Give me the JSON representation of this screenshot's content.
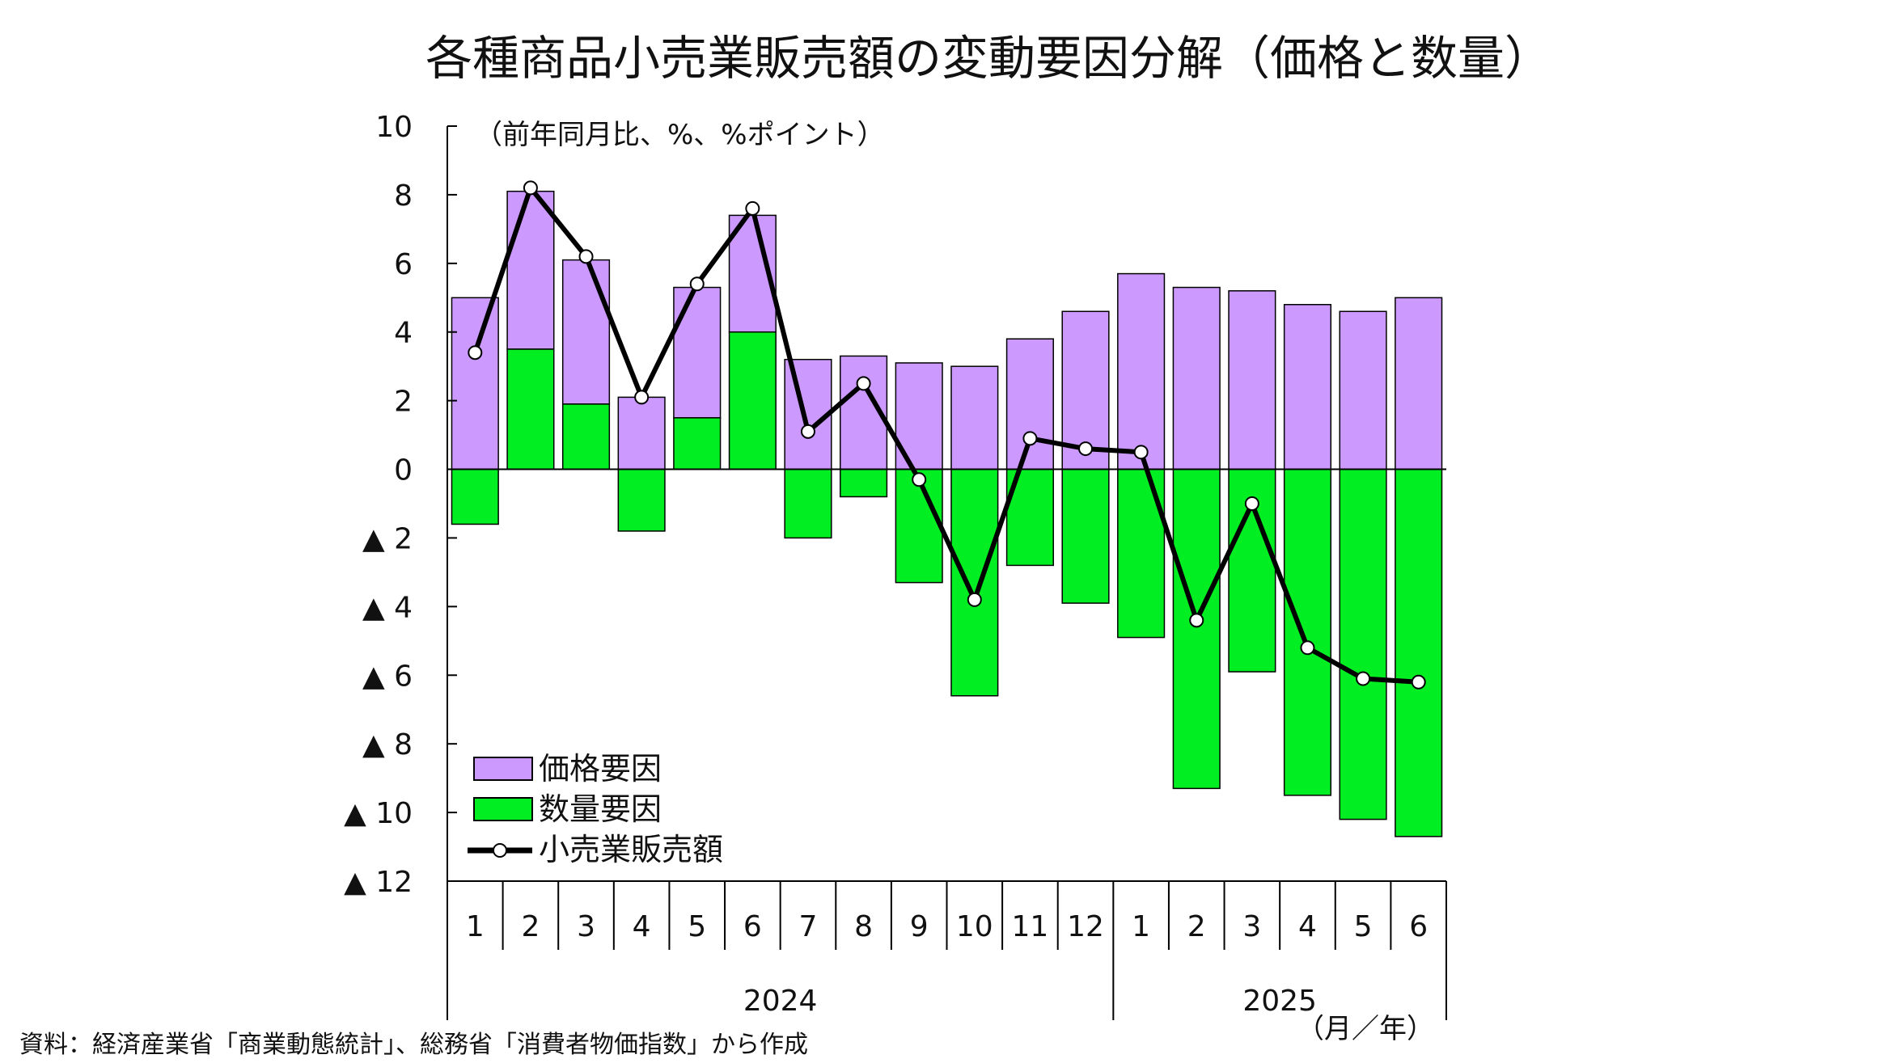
{
  "chart_data": {
    "type": "bar",
    "title": "各種商品小売業販売額の変動要因分解（価格と数量）",
    "unit_label": "（前年同月比、%、%ポイント）",
    "x_unit_label": "（月／年）",
    "source": "資料：経済産業省「商業動態統計」、総務省「消費者物価指数」から作成",
    "categories": [
      "1",
      "2",
      "3",
      "4",
      "5",
      "6",
      "7",
      "8",
      "9",
      "10",
      "11",
      "12",
      "1",
      "2",
      "3",
      "4",
      "5",
      "6"
    ],
    "year_groups": [
      {
        "label": "2024",
        "start": 0,
        "count": 12
      },
      {
        "label": "2025",
        "start": 12,
        "count": 6
      }
    ],
    "ylim": [
      -12,
      10
    ],
    "yticks": [
      10,
      8,
      6,
      4,
      2,
      0,
      -2,
      -4,
      -6,
      -8,
      -10,
      -12
    ],
    "ytick_labels": [
      "10",
      "8",
      "6",
      "4",
      "2",
      "0",
      "▲ 2",
      "▲ 4",
      "▲ 6",
      "▲ 8",
      "▲ 10",
      "▲ 12"
    ],
    "colors": {
      "price": "#cc99ff",
      "quantity": "#00ee22",
      "line": "#000000",
      "marker_fill": "#ffffff",
      "edge": "#000000"
    },
    "series": [
      {
        "name": "価格要因",
        "type": "bar",
        "values": [
          5.0,
          4.6,
          4.2,
          2.1,
          3.8,
          3.4,
          3.2,
          3.3,
          3.1,
          3.0,
          3.8,
          4.6,
          5.7,
          5.3,
          5.2,
          4.8,
          4.6,
          5.0
        ]
      },
      {
        "name": "数量要因",
        "type": "bar",
        "values": [
          -1.6,
          3.5,
          1.9,
          -1.8,
          1.5,
          4.0,
          -2.0,
          -0.8,
          -3.3,
          -6.6,
          -2.8,
          -3.9,
          -4.9,
          -9.3,
          -5.9,
          -9.5,
          -10.2,
          -10.7
        ]
      },
      {
        "name": "小売業販売額",
        "type": "line",
        "values": [
          3.4,
          8.2,
          6.2,
          2.1,
          5.4,
          7.6,
          1.1,
          2.5,
          -0.3,
          -3.8,
          0.9,
          0.6,
          0.5,
          -4.4,
          -1.0,
          -5.2,
          -6.1,
          -6.2
        ]
      }
    ],
    "legend_position": "bottom-left"
  }
}
